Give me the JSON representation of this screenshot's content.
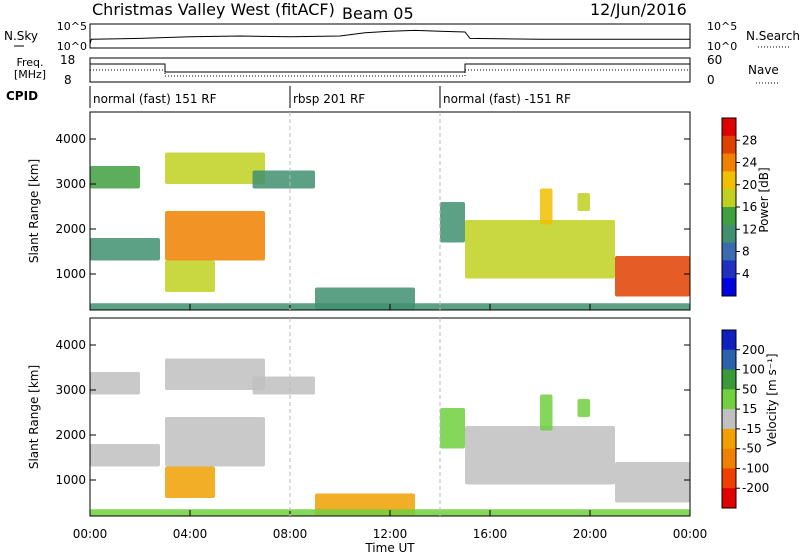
{
  "header": {
    "station": "Christmas Valley West (fitACF)",
    "beam": "Beam 05",
    "date": "12/Jun/2016"
  },
  "top_panels": {
    "nsky_label": "N.Sky",
    "nsearch_label": "N.Search",
    "noise_ticks": [
      "10^5",
      "10^0"
    ],
    "freq_label_1": "Freq.",
    "freq_label_2": "[MHz]",
    "freq_ticks": [
      "18",
      "8"
    ],
    "nave_label": "Nave",
    "nave_ticks": [
      "60",
      "0"
    ],
    "cpid_label": "CPID"
  },
  "cpid_segments": [
    {
      "start": 0,
      "end": 8,
      "label": "normal (fast) 151 RF"
    },
    {
      "start": 8,
      "end": 14,
      "label": "rbsp 201 RF"
    },
    {
      "start": 14,
      "end": 24,
      "label": "normal (fast) -151 RF"
    }
  ],
  "power_panel": {
    "ylabel": "Slant Range [km]",
    "colorbar_label": "Power [dB]",
    "colorbar_ticks": [
      "28",
      "24",
      "20",
      "16",
      "12",
      "8",
      "4"
    ]
  },
  "velocity_panel": {
    "ylabel": "Slant Range [km]",
    "colorbar_label": "Velocity [m s⁻¹]",
    "colorbar_ticks": [
      "200",
      "100",
      "50",
      "15",
      "-15",
      "-50",
      "-100",
      "-200"
    ]
  },
  "xaxis": {
    "label": "Time UT",
    "ticks": [
      "00:00",
      "04:00",
      "08:00",
      "12:00",
      "16:00",
      "20:00",
      "00:00"
    ]
  },
  "chart_data": {
    "type": "heatmap",
    "x_unit": "hours UT",
    "xlim": [
      0,
      24
    ],
    "ylim": [
      200,
      4600
    ],
    "yticks": [
      1000,
      2000,
      3000,
      4000
    ],
    "frequency": {
      "ylim": [
        8,
        18
      ],
      "x": [
        0,
        3,
        3,
        15,
        15,
        24
      ],
      "values": [
        16,
        16,
        12,
        12,
        16,
        16
      ]
    },
    "nave": {
      "ylim": [
        0,
        60
      ],
      "x": [
        0,
        3,
        3,
        15,
        15,
        24
      ],
      "values": [
        30,
        30,
        12,
        12,
        30,
        30
      ]
    },
    "noise_sky": {
      "x": [
        0,
        0.05,
        2,
        4,
        6,
        8,
        10,
        11,
        12,
        13,
        14,
        15,
        15.2,
        18,
        22,
        24
      ],
      "values": [
        0,
        0.3,
        0.35,
        0.45,
        0.5,
        0.45,
        0.5,
        0.7,
        0.8,
        0.85,
        0.8,
        0.75,
        0.35,
        0.3,
        0.3,
        0.3
      ]
    },
    "echo_regions": [
      {
        "t0": 0.0,
        "t1": 2.0,
        "r0": 2900,
        "r1": 3400,
        "power": 14,
        "velocity": 0
      },
      {
        "t0": 0.0,
        "t1": 2.8,
        "r0": 1300,
        "r1": 1800,
        "power": 12,
        "velocity": 0
      },
      {
        "t0": 3.0,
        "t1": 7.0,
        "r0": 1300,
        "r1": 2400,
        "power": 24,
        "velocity": 0
      },
      {
        "t0": 3.0,
        "t1": 7.0,
        "r0": 3000,
        "r1": 3700,
        "power": 18,
        "velocity": -20
      },
      {
        "t0": 3.0,
        "t1": 5.0,
        "r0": 600,
        "r1": 1300,
        "power": 18,
        "velocity": -30
      },
      {
        "t0": 6.5,
        "t1": 9.0,
        "r0": 2900,
        "r1": 3300,
        "power": 13,
        "velocity": 0
      },
      {
        "t0": 9.0,
        "t1": 13.0,
        "r0": 200,
        "r1": 700,
        "power": 12,
        "velocity": -40
      },
      {
        "t0": 14.0,
        "t1": 15.0,
        "r0": 1700,
        "r1": 2600,
        "power": 12,
        "velocity": 20
      },
      {
        "t0": 15.0,
        "t1": 21.0,
        "r0": 900,
        "r1": 2200,
        "power": 18,
        "velocity": 0
      },
      {
        "t0": 18.0,
        "t1": 18.5,
        "r0": 2100,
        "r1": 2900,
        "power": 22,
        "velocity": 20
      },
      {
        "t0": 19.5,
        "t1": 20.0,
        "r0": 2400,
        "r1": 2800,
        "power": 18,
        "velocity": 20
      },
      {
        "t0": 21.0,
        "t1": 24.0,
        "r0": 500,
        "r1": 1400,
        "power": 26,
        "velocity": 0
      },
      {
        "t0": 0.0,
        "t1": 24.0,
        "r0": 200,
        "r1": 350,
        "power": 12,
        "velocity": 20
      }
    ]
  }
}
